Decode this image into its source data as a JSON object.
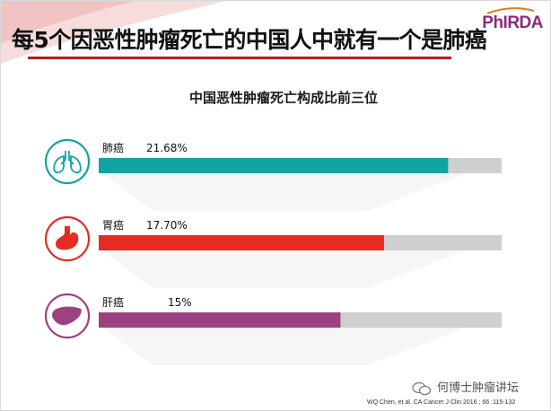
{
  "slide": {
    "title": "每5个因恶性肿瘤死亡的中国人中就有一个是肺癌",
    "logo_text": "PhIRDA",
    "source": "WQ Chen, et al. CA Cancer J Clin 2016 ; 66 :115-132",
    "watermark": "何博士肿瘤讲坛"
  },
  "colors": {
    "title_rule": "#c0191f",
    "bar_track": "#cfcfcf",
    "lung": "#12a3a2",
    "stomach": "#e42c22",
    "liver": "#9d4182"
  },
  "chart_data": {
    "type": "bar",
    "orientation": "horizontal",
    "title": "中国恶性肿瘤死亡构成比前三位",
    "xlim": [
      0,
      25
    ],
    "categories": [
      "肺癌",
      "胃癌",
      "肝癌"
    ],
    "values": [
      21.68,
      17.7,
      15
    ],
    "value_labels": [
      "21.68%",
      "17.70%",
      "15%"
    ],
    "icons": [
      "lungs-icon",
      "stomach-icon",
      "liver-icon"
    ],
    "bar_colors": [
      "#12a3a2",
      "#e42c22",
      "#9d4182"
    ],
    "grid": false,
    "legend": "none"
  }
}
